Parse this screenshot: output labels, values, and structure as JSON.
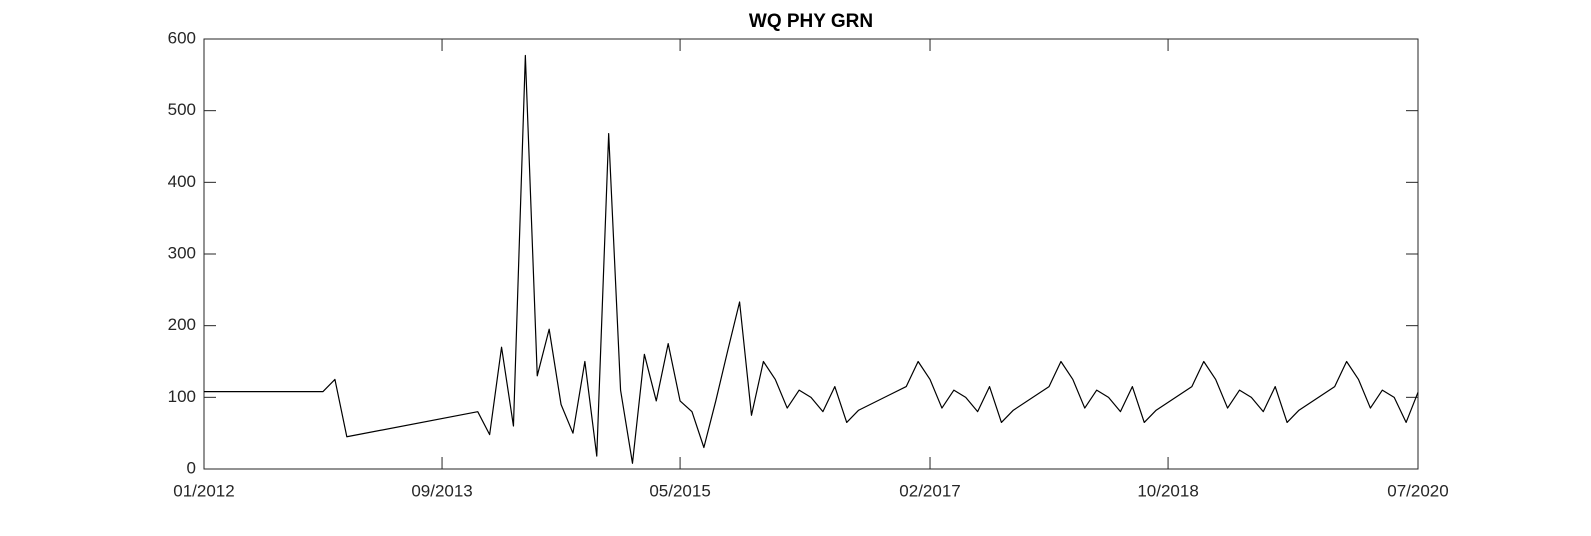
{
  "chart_data": {
    "type": "line",
    "title": "WQ PHY GRN",
    "x": [
      "2012-01",
      "2012-11",
      "2012-12",
      "2013-01",
      "2013-12",
      "2014-01",
      "2014-02",
      "2014-03",
      "2014-04",
      "2014-05",
      "2014-06",
      "2014-07",
      "2014-08",
      "2014-09",
      "2014-10",
      "2014-11",
      "2014-12",
      "2015-01",
      "2015-02",
      "2015-03",
      "2015-04",
      "2015-05",
      "2015-06",
      "2015-07",
      "2015-08",
      "2015-09",
      "2015-10",
      "2015-11",
      "2015-12",
      "2016-01",
      "2016-02",
      "2016-03",
      "2016-04",
      "2016-05",
      "2016-06",
      "2016-07",
      "2016-08",
      "2016-12",
      "2017-01",
      "2017-02",
      "2017-03",
      "2017-04",
      "2017-05",
      "2017-06",
      "2017-07",
      "2017-08",
      "2017-09",
      "2017-12",
      "2018-01",
      "2018-02",
      "2018-03",
      "2018-04",
      "2018-05",
      "2018-06",
      "2018-07",
      "2018-08",
      "2018-09",
      "2018-12",
      "2019-01",
      "2019-02",
      "2019-03",
      "2019-04",
      "2019-05",
      "2019-06",
      "2019-07",
      "2019-08",
      "2019-09",
      "2019-12",
      "2020-01",
      "2020-02",
      "2020-03",
      "2020-04",
      "2020-05",
      "2020-06",
      "2020-07"
    ],
    "series": [
      {
        "name": "WQ PHY GRN",
        "color": "#000000",
        "values": [
          108,
          108,
          125,
          45,
          80,
          48,
          170,
          60,
          577,
          130,
          195,
          90,
          50,
          150,
          18,
          468,
          110,
          8,
          160,
          95,
          175,
          95,
          80,
          30,
          95,
          165,
          233,
          75,
          150,
          125,
          85,
          110,
          100,
          80,
          115,
          65,
          82,
          115,
          150,
          125,
          85,
          110,
          100,
          80,
          115,
          65,
          82,
          115,
          150,
          125,
          85,
          110,
          100,
          80,
          115,
          65,
          82,
          115,
          150,
          125,
          85,
          110,
          100,
          80,
          115,
          65,
          82,
          115,
          150,
          125,
          85,
          110,
          100,
          65,
          107
        ]
      }
    ],
    "xlim": [
      "2012-01",
      "2020-07"
    ],
    "xticks": [
      {
        "value": "2012-01",
        "label": "01/2012"
      },
      {
        "value": "2013-09",
        "label": "09/2013"
      },
      {
        "value": "2015-05",
        "label": "05/2015"
      },
      {
        "value": "2017-02",
        "label": "02/2017"
      },
      {
        "value": "2018-10",
        "label": "10/2018"
      },
      {
        "value": "2020-07",
        "label": "07/2020"
      }
    ],
    "ylim": [
      0,
      600
    ],
    "yticks": [
      0,
      100,
      200,
      300,
      400,
      500,
      600
    ],
    "grid": false
  }
}
